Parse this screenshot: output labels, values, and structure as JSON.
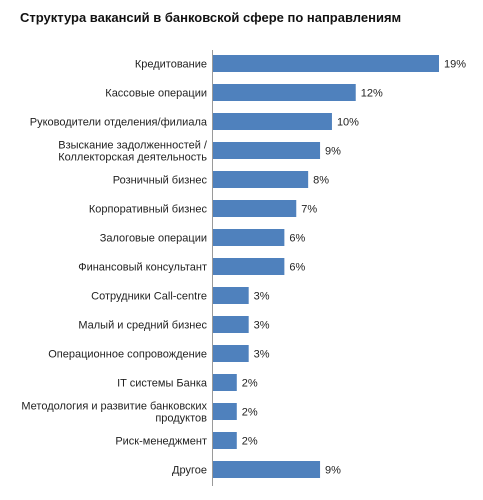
{
  "chart_data": {
    "type": "bar",
    "orientation": "horizontal",
    "title": "Структура вакансий в банковской сфере по направлениям",
    "xlabel": "",
    "ylabel": "",
    "grid": false,
    "legend": "none",
    "bar_color": "#4f81bd",
    "categories": [
      [
        "Кредитование"
      ],
      [
        "Кассовые операции"
      ],
      [
        "Руководители отделения/филиала"
      ],
      [
        "Взыскание задолженностей /",
        "Коллекторская деятельность"
      ],
      [
        "Розничный бизнес"
      ],
      [
        "Корпоративный бизнес"
      ],
      [
        "Залоговые операции"
      ],
      [
        "Финансовый консультант"
      ],
      [
        "Сотрудники Call-centre"
      ],
      [
        "Малый и средний бизнес"
      ],
      [
        "Операционное сопровождение"
      ],
      [
        "IT системы Банка"
      ],
      [
        "Методология и развитие банковских",
        "продуктов"
      ],
      [
        "Риск-менеджмент"
      ],
      [
        "Другое"
      ]
    ],
    "values": [
      19,
      12,
      10,
      9,
      8,
      7,
      6,
      6,
      3,
      3,
      3,
      2,
      2,
      2,
      9
    ],
    "value_labels": [
      "19%",
      "12%",
      "10%",
      "9%",
      "8%",
      "7%",
      "6%",
      "6%",
      "3%",
      "3%",
      "3%",
      "2%",
      "2%",
      "2%",
      "9%"
    ]
  }
}
